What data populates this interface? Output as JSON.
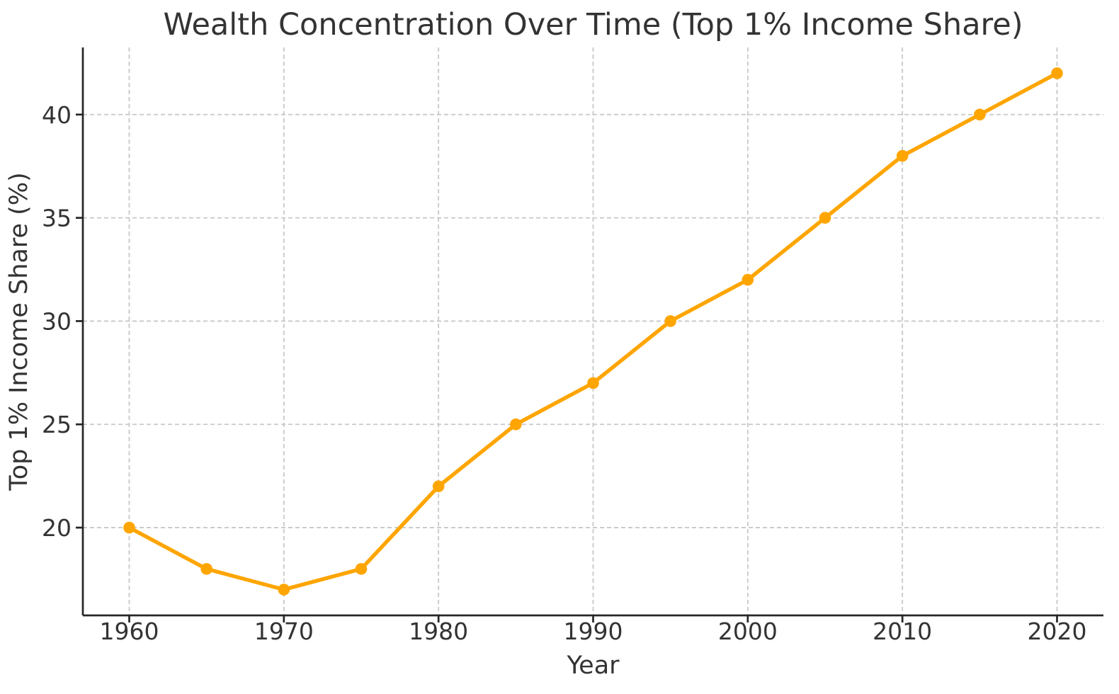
{
  "chart_data": {
    "type": "line",
    "title": "Wealth Concentration Over Time (Top 1% Income Share)",
    "xlabel": "Year",
    "ylabel": "Top 1% Income Share (%)",
    "x": [
      1960,
      1965,
      1970,
      1975,
      1980,
      1985,
      1990,
      1995,
      2000,
      2005,
      2010,
      2015,
      2020
    ],
    "series": [
      {
        "name": "Top 1% Income Share",
        "values": [
          20,
          18,
          17,
          18,
          22,
          25,
          27,
          30,
          32,
          35,
          38,
          40,
          42
        ]
      }
    ],
    "xticks": [
      1960,
      1970,
      1980,
      1990,
      2000,
      2010,
      2020
    ],
    "yticks": [
      20,
      25,
      30,
      35,
      40
    ],
    "xlim": [
      1957,
      2023
    ],
    "ylim": [
      15.75,
      43.25
    ],
    "grid": true,
    "grid_style": "dashed",
    "legend": "none",
    "marker": "circle",
    "colors": {
      "line": "#FFA500",
      "marker": "#FFA500",
      "grid": "#c8c8c8",
      "spine": "#262626",
      "text": "#333333",
      "background": "#ffffff"
    }
  }
}
